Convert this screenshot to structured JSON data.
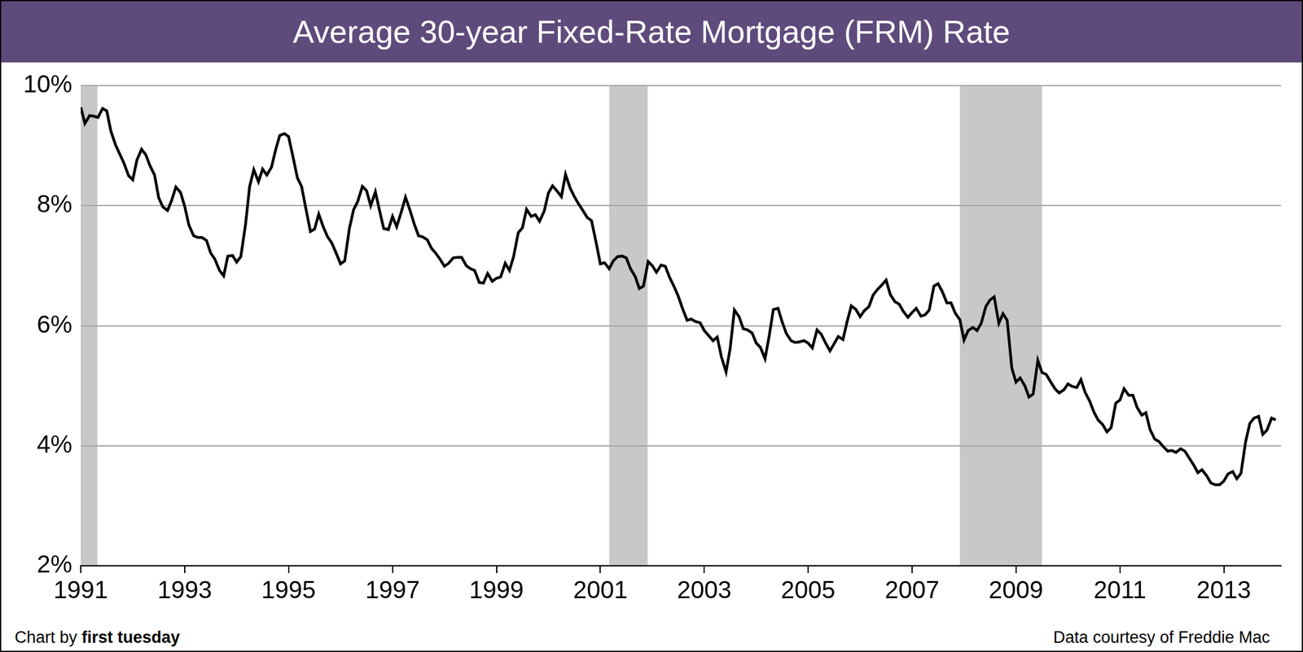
{
  "chart_data": {
    "type": "line",
    "title": "Average 30-year Fixed-Rate Mortgage (FRM) Rate",
    "credit_text": "Chart by",
    "credit_name": "first tuesday",
    "source": "Data courtesy of Freddie Mac",
    "color": "#000000",
    "grid": true,
    "xlim": [
      1991,
      2014.1
    ],
    "xticks": [
      1991,
      1993,
      1995,
      1997,
      1999,
      2001,
      2003,
      2005,
      2007,
      2009,
      2011,
      2013
    ],
    "ylim": [
      2,
      10
    ],
    "yticks": [
      {
        "value": 2,
        "label": "2%"
      },
      {
        "value": 4,
        "label": "4%"
      },
      {
        "value": 6,
        "label": "6%"
      },
      {
        "value": 8,
        "label": "8%"
      },
      {
        "value": 10,
        "label": "10%"
      }
    ],
    "shaded_periods": [
      [
        1991,
        1991.32
      ],
      [
        2001.17,
        2001.91
      ],
      [
        2007.92,
        2009.5
      ]
    ],
    "x": [
      1991,
      1991.08,
      1991.17,
      1991.25,
      1991.33,
      1991.42,
      1991.5,
      1991.58,
      1991.67,
      1991.75,
      1991.83,
      1991.92,
      1992,
      1992.08,
      1992.17,
      1992.25,
      1992.33,
      1992.42,
      1992.5,
      1992.58,
      1992.67,
      1992.75,
      1992.83,
      1992.92,
      1993,
      1993.08,
      1993.17,
      1993.25,
      1993.33,
      1993.42,
      1993.5,
      1993.58,
      1993.67,
      1993.75,
      1993.83,
      1993.92,
      1994,
      1994.08,
      1994.17,
      1994.25,
      1994.33,
      1994.42,
      1994.5,
      1994.58,
      1994.67,
      1994.75,
      1994.83,
      1994.92,
      1995,
      1995.08,
      1995.17,
      1995.25,
      1995.33,
      1995.42,
      1995.5,
      1995.58,
      1995.67,
      1995.75,
      1995.83,
      1995.92,
      1996,
      1996.08,
      1996.17,
      1996.25,
      1996.33,
      1996.42,
      1996.5,
      1996.58,
      1996.67,
      1996.75,
      1996.83,
      1996.92,
      1997,
      1997.08,
      1997.17,
      1997.25,
      1997.33,
      1997.42,
      1997.5,
      1997.58,
      1997.67,
      1997.75,
      1997.83,
      1997.92,
      1998,
      1998.08,
      1998.17,
      1998.25,
      1998.33,
      1998.42,
      1998.5,
      1998.58,
      1998.67,
      1998.75,
      1998.83,
      1998.92,
      1999,
      1999.08,
      1999.17,
      1999.25,
      1999.33,
      1999.42,
      1999.5,
      1999.58,
      1999.67,
      1999.75,
      1999.83,
      1999.92,
      2000,
      2000.08,
      2000.17,
      2000.25,
      2000.33,
      2000.42,
      2000.5,
      2000.58,
      2000.67,
      2000.75,
      2000.83,
      2000.92,
      2001,
      2001.08,
      2001.17,
      2001.25,
      2001.33,
      2001.42,
      2001.5,
      2001.58,
      2001.67,
      2001.75,
      2001.83,
      2001.92,
      2002,
      2002.08,
      2002.17,
      2002.25,
      2002.33,
      2002.42,
      2002.5,
      2002.58,
      2002.67,
      2002.75,
      2002.83,
      2002.92,
      2003,
      2003.08,
      2003.17,
      2003.25,
      2003.33,
      2003.42,
      2003.5,
      2003.58,
      2003.67,
      2003.75,
      2003.83,
      2003.92,
      2004,
      2004.08,
      2004.17,
      2004.25,
      2004.33,
      2004.42,
      2004.5,
      2004.58,
      2004.67,
      2004.75,
      2004.83,
      2004.92,
      2005,
      2005.08,
      2005.17,
      2005.25,
      2005.33,
      2005.42,
      2005.5,
      2005.58,
      2005.67,
      2005.75,
      2005.83,
      2005.92,
      2006,
      2006.08,
      2006.17,
      2006.25,
      2006.33,
      2006.42,
      2006.5,
      2006.58,
      2006.67,
      2006.75,
      2006.83,
      2006.92,
      2007,
      2007.08,
      2007.17,
      2007.25,
      2007.33,
      2007.42,
      2007.5,
      2007.58,
      2007.67,
      2007.75,
      2007.83,
      2007.92,
      2008,
      2008.08,
      2008.17,
      2008.25,
      2008.33,
      2008.42,
      2008.5,
      2008.58,
      2008.67,
      2008.75,
      2008.83,
      2008.92,
      2009,
      2009.08,
      2009.17,
      2009.25,
      2009.33,
      2009.42,
      2009.5,
      2009.58,
      2009.67,
      2009.75,
      2009.83,
      2009.92,
      2010,
      2010.08,
      2010.17,
      2010.25,
      2010.33,
      2010.42,
      2010.5,
      2010.58,
      2010.67,
      2010.75,
      2010.83,
      2010.92,
      2011,
      2011.08,
      2011.17,
      2011.25,
      2011.33,
      2011.42,
      2011.5,
      2011.58,
      2011.67,
      2011.75,
      2011.83,
      2011.92,
      2012,
      2012.08,
      2012.17,
      2012.25,
      2012.33,
      2012.42,
      2012.5,
      2012.58,
      2012.67,
      2012.75,
      2012.83,
      2012.92,
      2013,
      2013.08,
      2013.17,
      2013.25,
      2013.33,
      2013.42,
      2013.5,
      2013.58,
      2013.67,
      2013.75,
      2013.83,
      2013.92,
      2014
    ],
    "values": [
      9.64,
      9.37,
      9.5,
      9.49,
      9.47,
      9.62,
      9.58,
      9.24,
      9.01,
      8.86,
      8.71,
      8.5,
      8.43,
      8.76,
      8.94,
      8.85,
      8.67,
      8.51,
      8.13,
      7.98,
      7.92,
      8.09,
      8.31,
      8.22,
      7.99,
      7.68,
      7.5,
      7.47,
      7.47,
      7.42,
      7.21,
      7.11,
      6.92,
      6.83,
      7.16,
      7.17,
      7.06,
      7.15,
      7.68,
      8.32,
      8.6,
      8.4,
      8.61,
      8.51,
      8.64,
      8.93,
      9.17,
      9.2,
      9.15,
      8.83,
      8.46,
      8.32,
      7.96,
      7.57,
      7.61,
      7.86,
      7.64,
      7.48,
      7.38,
      7.2,
      7.03,
      7.08,
      7.62,
      7.93,
      8.07,
      8.32,
      8.25,
      8.0,
      8.23,
      7.92,
      7.62,
      7.6,
      7.82,
      7.65,
      7.9,
      8.14,
      7.94,
      7.69,
      7.5,
      7.48,
      7.43,
      7.29,
      7.21,
      7.1,
      6.99,
      7.04,
      7.13,
      7.14,
      7.14,
      7.0,
      6.95,
      6.92,
      6.72,
      6.71,
      6.87,
      6.74,
      6.79,
      6.81,
      7.04,
      6.92,
      7.15,
      7.55,
      7.63,
      7.94,
      7.82,
      7.85,
      7.74,
      7.91,
      8.21,
      8.33,
      8.24,
      8.15,
      8.52,
      8.29,
      8.15,
      8.03,
      7.91,
      7.8,
      7.75,
      7.38,
      7.03,
      7.05,
      6.95,
      7.08,
      7.15,
      7.16,
      7.13,
      6.95,
      6.82,
      6.62,
      6.66,
      7.07,
      7.0,
      6.89,
      7.01,
      6.99,
      6.81,
      6.65,
      6.49,
      6.29,
      6.09,
      6.11,
      6.07,
      6.05,
      5.92,
      5.84,
      5.75,
      5.81,
      5.48,
      5.23,
      5.63,
      6.26,
      6.15,
      5.95,
      5.93,
      5.88,
      5.71,
      5.64,
      5.45,
      5.83,
      6.27,
      6.29,
      6.06,
      5.87,
      5.75,
      5.72,
      5.73,
      5.75,
      5.71,
      5.63,
      5.93,
      5.86,
      5.72,
      5.58,
      5.7,
      5.82,
      5.77,
      6.07,
      6.33,
      6.27,
      6.15,
      6.25,
      6.32,
      6.51,
      6.6,
      6.68,
      6.76,
      6.52,
      6.4,
      6.36,
      6.24,
      6.14,
      6.22,
      6.29,
      6.16,
      6.18,
      6.26,
      6.66,
      6.7,
      6.57,
      6.38,
      6.38,
      6.21,
      6.1,
      5.76,
      5.92,
      5.97,
      5.92,
      6.04,
      6.32,
      6.43,
      6.48,
      6.04,
      6.2,
      6.09,
      5.29,
      5.06,
      5.13,
      5.0,
      4.81,
      4.86,
      5.42,
      5.22,
      5.19,
      5.06,
      4.95,
      4.88,
      4.93,
      5.03,
      4.99,
      4.97,
      5.1,
      4.89,
      4.74,
      4.56,
      4.43,
      4.35,
      4.23,
      4.3,
      4.71,
      4.76,
      4.95,
      4.84,
      4.84,
      4.64,
      4.51,
      4.55,
      4.27,
      4.11,
      4.07,
      3.99,
      3.91,
      3.92,
      3.89,
      3.95,
      3.91,
      3.8,
      3.68,
      3.55,
      3.6,
      3.5,
      3.38,
      3.35,
      3.35,
      3.41,
      3.53,
      3.57,
      3.45,
      3.54,
      4.07,
      4.37,
      4.46,
      4.49,
      4.19,
      4.26,
      4.46,
      4.43
    ]
  }
}
